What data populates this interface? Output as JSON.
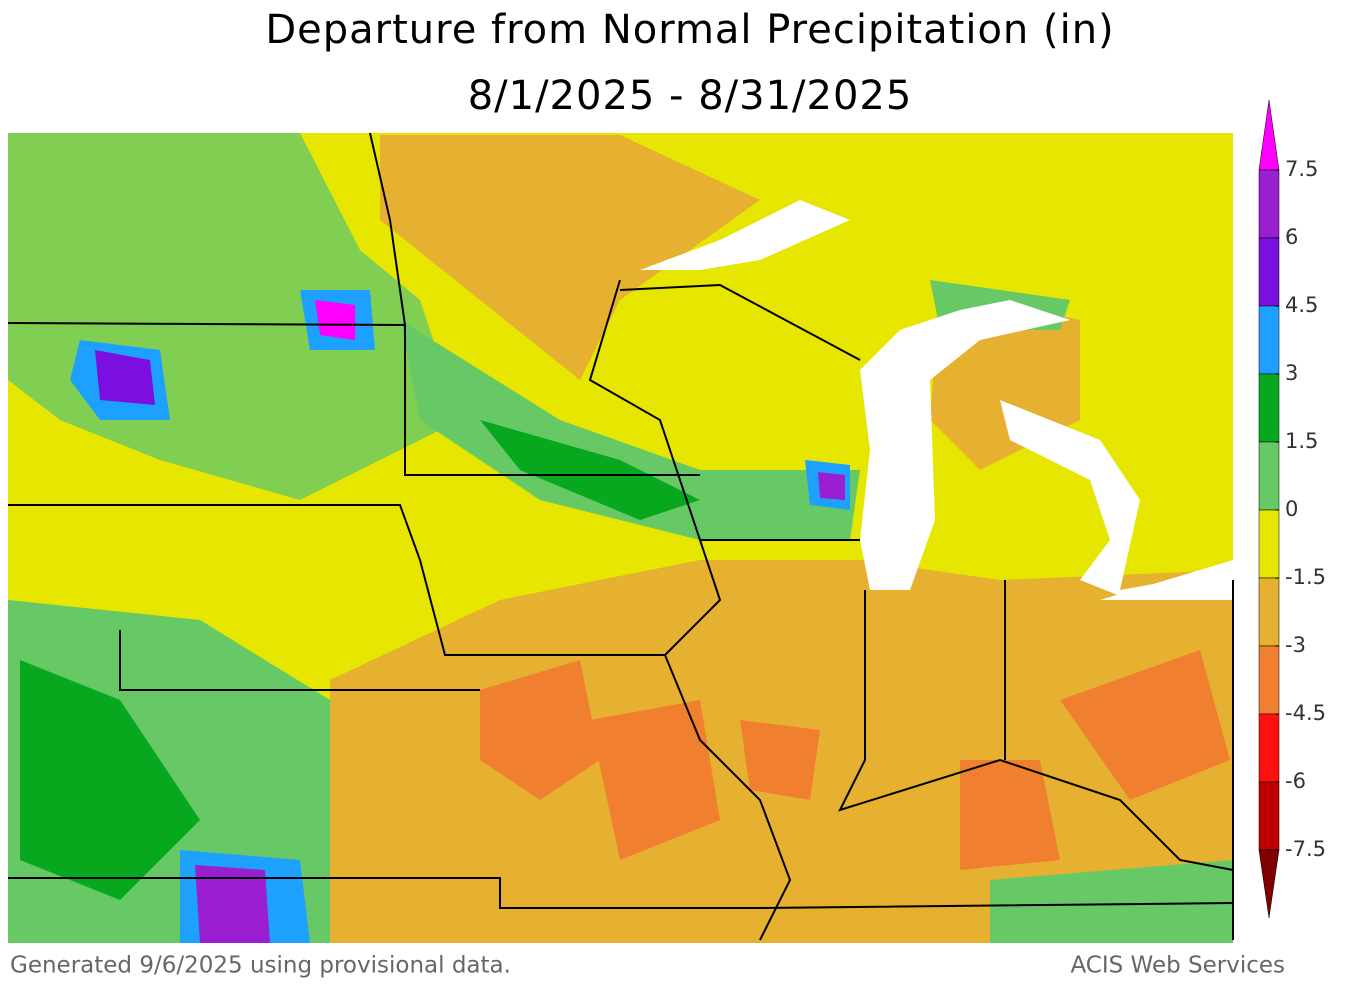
{
  "title": "Departure from Normal Precipitation (in)",
  "subtitle": "8/1/2025 - 8/31/2025",
  "footer_left": "Generated 9/6/2025 using provisional data.",
  "footer_right": "ACIS Web Services",
  "colorbar": {
    "ticks": [
      7.5,
      6,
      4.5,
      3,
      1.5,
      0,
      -1.5,
      -3,
      -4.5,
      -6,
      -7.5
    ],
    "colors": [
      "#ff00ff",
      "#9a1fd0",
      "#7a0fe0",
      "#1ea0ff",
      "#07a81e",
      "#66c966",
      "#e6e600",
      "#e6b030",
      "#f08030",
      "#ff1010",
      "#c00000",
      "#800000"
    ]
  }
}
